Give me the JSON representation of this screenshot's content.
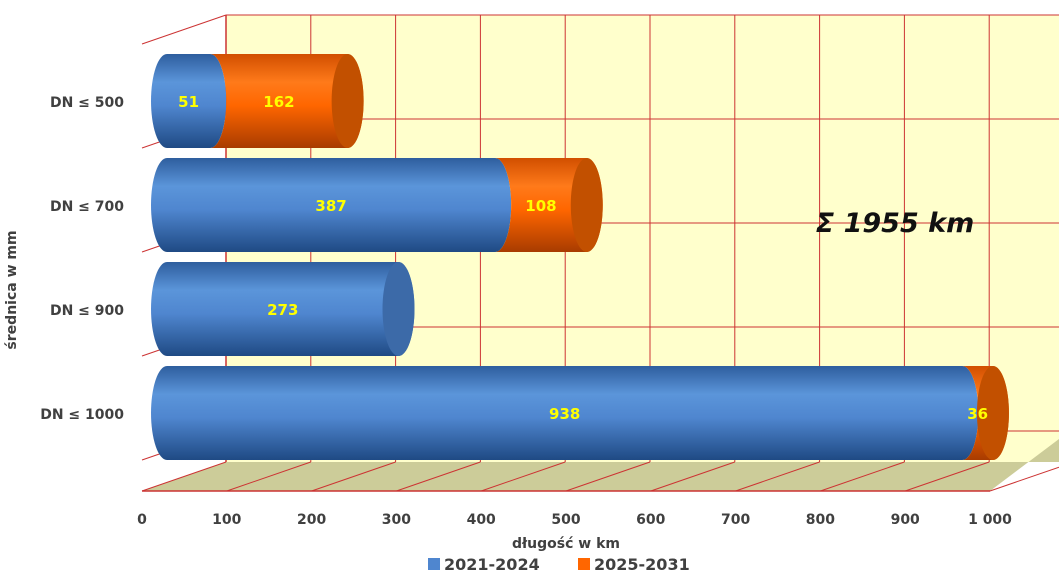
{
  "chart_data": {
    "type": "bar",
    "orientation": "horizontal",
    "stacked": true,
    "style": "3d-cylinder",
    "categories": [
      "DN ≤ 500",
      "DN ≤ 700",
      "DN ≤ 900",
      "DN ≤ 1000"
    ],
    "series": [
      {
        "name": "2021-2024",
        "color": "#4f86cf",
        "values": [
          51,
          387,
          273,
          938
        ]
      },
      {
        "name": "2025-2031",
        "color": "#ff6600",
        "values": [
          162,
          108,
          0,
          36
        ]
      }
    ],
    "xlabel": "długość w km",
    "ylabel": "średnica w mm",
    "xlim": [
      0,
      1000
    ],
    "xticks": [
      "0",
      "100",
      "200",
      "300",
      "400",
      "500",
      "600",
      "700",
      "800",
      "900",
      "1 000"
    ],
    "annotation": "Σ 1955 km",
    "grid": true,
    "legend_position": "bottom",
    "colors": {
      "wall": "#ffffcc",
      "floor": "#cccc99",
      "gridline": "#cc3333",
      "label": "#ffff00"
    }
  }
}
